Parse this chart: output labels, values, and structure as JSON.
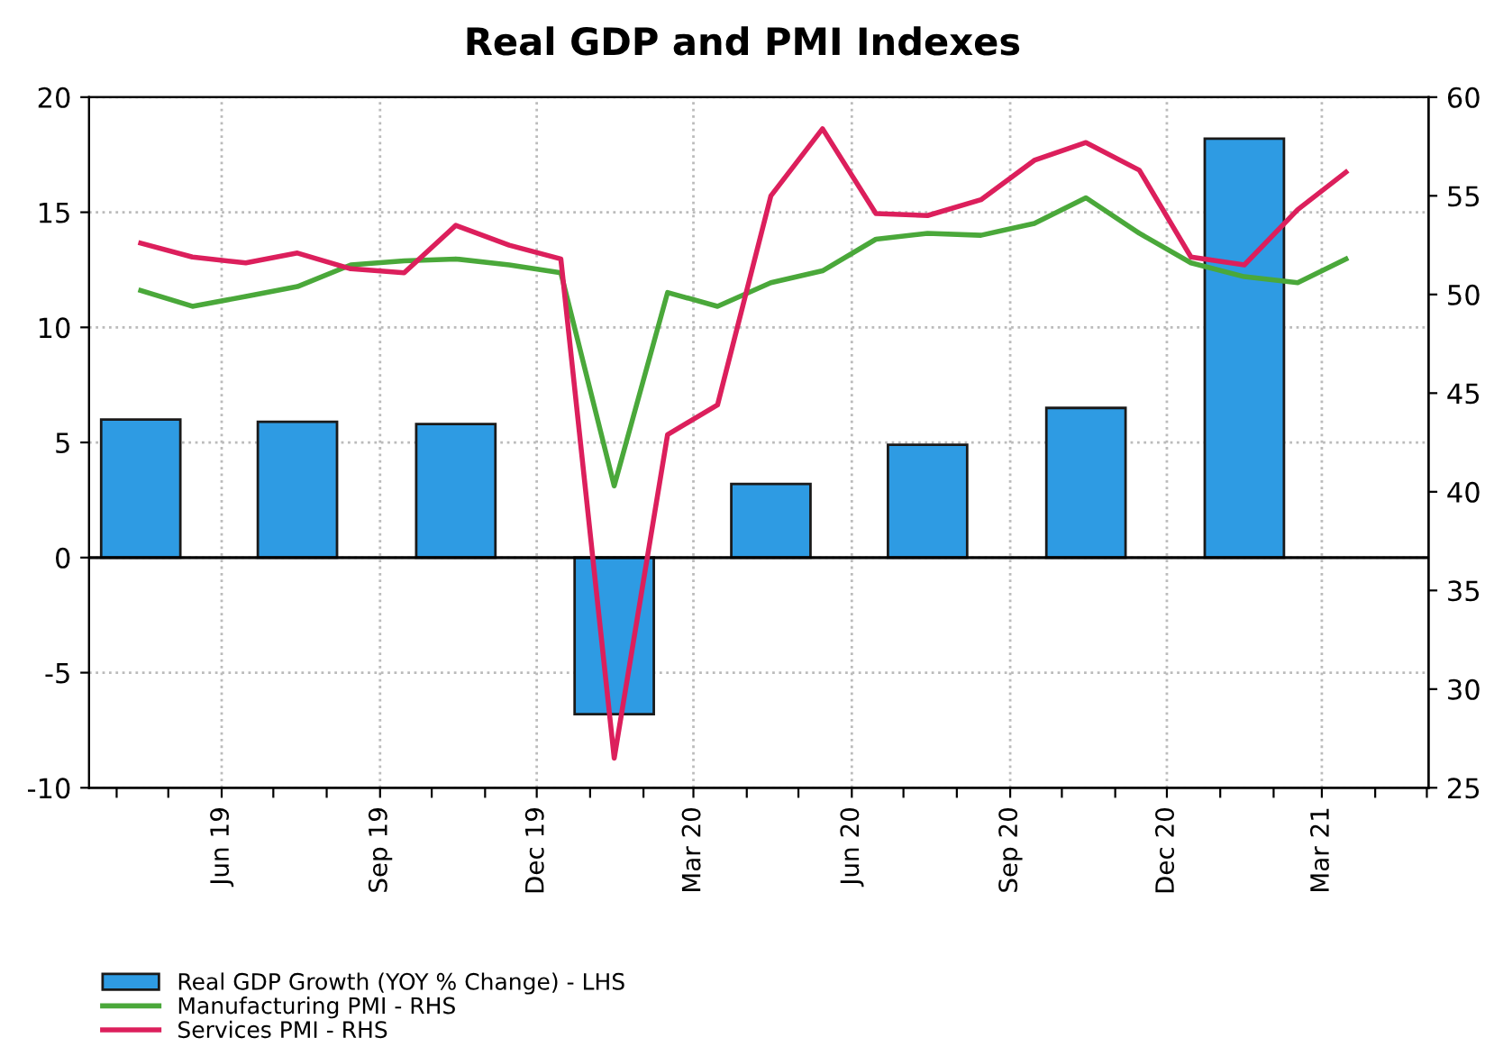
{
  "chart_data": {
    "type": "bar",
    "title": "Real GDP and PMI Indexes",
    "xlim": [
      "2019-03-16",
      "2021-05-02"
    ],
    "xticks": [
      {
        "value": "2019-04-01",
        "label": null
      },
      {
        "value": "2019-05-01",
        "label": null
      },
      {
        "value": "2019-06-01",
        "label": "Jun 19"
      },
      {
        "value": "2019-07-01",
        "label": null
      },
      {
        "value": "2019-08-01",
        "label": null
      },
      {
        "value": "2019-09-01",
        "label": "Sep 19"
      },
      {
        "value": "2019-10-01",
        "label": null
      },
      {
        "value": "2019-11-01",
        "label": null
      },
      {
        "value": "2019-12-01",
        "label": "Dec 19"
      },
      {
        "value": "2020-01-01",
        "label": null
      },
      {
        "value": "2020-02-01",
        "label": null
      },
      {
        "value": "2020-03-01",
        "label": "Mar 20"
      },
      {
        "value": "2020-04-01",
        "label": null
      },
      {
        "value": "2020-05-01",
        "label": null
      },
      {
        "value": "2020-06-01",
        "label": "Jun 20"
      },
      {
        "value": "2020-07-01",
        "label": null
      },
      {
        "value": "2020-08-01",
        "label": null
      },
      {
        "value": "2020-09-01",
        "label": "Sep 20"
      },
      {
        "value": "2020-10-01",
        "label": null
      },
      {
        "value": "2020-11-01",
        "label": null
      },
      {
        "value": "2020-12-01",
        "label": "Dec 20"
      },
      {
        "value": "2021-01-01",
        "label": null
      },
      {
        "value": "2021-02-01",
        "label": null
      },
      {
        "value": "2021-03-01",
        "label": "Mar 21"
      },
      {
        "value": "2021-04-01",
        "label": null
      },
      {
        "value": "2021-05-01",
        "label": null
      }
    ],
    "ylim": [
      -10,
      20
    ],
    "yticks": [
      -10,
      -5,
      0,
      5,
      10,
      15,
      20
    ],
    "y2lim": [
      25,
      60
    ],
    "y2ticks": [
      25,
      30,
      35,
      40,
      45,
      50,
      55,
      60
    ],
    "grid": true,
    "legend": "bottom left",
    "ref_lines": [
      {
        "axis": "y",
        "value": 0,
        "color": "#000000"
      }
    ],
    "series": [
      {
        "name": "Real GDP Growth (YOY % Change) - LHS",
        "color": "#2e9be3",
        "x": [
          "2019-04-15",
          "2019-07-15",
          "2019-10-15",
          "2020-01-15",
          "2020-04-15",
          "2020-07-15",
          "2020-10-15",
          "2021-01-15"
        ],
        "values": [
          6.0,
          5.9,
          5.8,
          -6.8,
          3.2,
          4.9,
          6.5,
          18.2
        ]
      },
      {
        "name": "Manufacturing PMI - RHS",
        "type": "line",
        "axis": "y2",
        "color": "#4aa83a",
        "x": [
          "2019-04-15",
          "2019-05-15",
          "2019-06-15",
          "2019-07-15",
          "2019-08-15",
          "2019-09-15",
          "2019-10-15",
          "2019-11-15",
          "2019-12-15",
          "2020-01-15",
          "2020-02-15",
          "2020-03-15",
          "2020-04-15",
          "2020-05-15",
          "2020-06-15",
          "2020-07-15",
          "2020-08-15",
          "2020-09-15",
          "2020-10-15",
          "2020-11-15",
          "2020-12-15",
          "2021-01-15",
          "2021-02-15",
          "2021-03-15"
        ],
        "values": [
          50.2,
          49.4,
          49.9,
          50.4,
          51.5,
          51.7,
          51.8,
          51.5,
          51.1,
          40.3,
          50.1,
          49.4,
          50.6,
          51.2,
          52.8,
          53.1,
          53.0,
          53.6,
          54.9,
          53.1,
          51.6,
          50.9,
          50.6,
          51.8
        ]
      },
      {
        "name": "Services PMI - RHS",
        "type": "line",
        "axis": "y2",
        "color": "#dc1f5c",
        "x": [
          "2019-04-15",
          "2019-05-15",
          "2019-06-15",
          "2019-07-15",
          "2019-08-15",
          "2019-09-15",
          "2019-10-15",
          "2019-11-15",
          "2019-12-15",
          "2020-01-15",
          "2020-02-15",
          "2020-03-15",
          "2020-04-15",
          "2020-05-15",
          "2020-06-15",
          "2020-07-15",
          "2020-08-15",
          "2020-09-15",
          "2020-10-15",
          "2020-11-15",
          "2020-12-15",
          "2021-01-15",
          "2021-02-15",
          "2021-03-15"
        ],
        "values": [
          52.6,
          51.9,
          51.6,
          52.1,
          51.3,
          51.1,
          53.5,
          52.5,
          51.8,
          26.5,
          42.9,
          44.4,
          55.0,
          58.4,
          54.1,
          54.0,
          54.8,
          56.8,
          57.7,
          56.3,
          51.9,
          51.5,
          54.3,
          56.2
        ]
      }
    ]
  }
}
